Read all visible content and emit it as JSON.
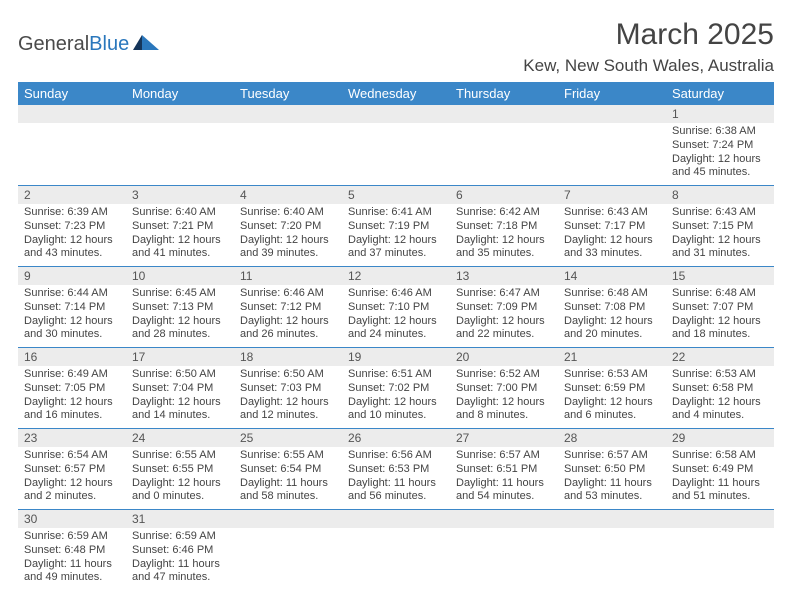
{
  "logo": {
    "general": "General",
    "blue": "Blue"
  },
  "title": "March 2025",
  "location": "Kew, New South Wales, Australia",
  "colors": {
    "header_bg": "#3b87c8",
    "header_text": "#ffffff",
    "grey_row": "#ececec",
    "border": "#3b87c8",
    "text": "#444444"
  },
  "day_names": [
    "Sunday",
    "Monday",
    "Tuesday",
    "Wednesday",
    "Thursday",
    "Friday",
    "Saturday"
  ],
  "weeks": [
    {
      "nums": [
        "",
        "",
        "",
        "",
        "",
        "",
        "1"
      ],
      "cells": [
        null,
        null,
        null,
        null,
        null,
        null,
        {
          "sunrise": "Sunrise: 6:38 AM",
          "sunset": "Sunset: 7:24 PM",
          "day1": "Daylight: 12 hours",
          "day2": "and 45 minutes."
        }
      ]
    },
    {
      "nums": [
        "2",
        "3",
        "4",
        "5",
        "6",
        "7",
        "8"
      ],
      "cells": [
        {
          "sunrise": "Sunrise: 6:39 AM",
          "sunset": "Sunset: 7:23 PM",
          "day1": "Daylight: 12 hours",
          "day2": "and 43 minutes."
        },
        {
          "sunrise": "Sunrise: 6:40 AM",
          "sunset": "Sunset: 7:21 PM",
          "day1": "Daylight: 12 hours",
          "day2": "and 41 minutes."
        },
        {
          "sunrise": "Sunrise: 6:40 AM",
          "sunset": "Sunset: 7:20 PM",
          "day1": "Daylight: 12 hours",
          "day2": "and 39 minutes."
        },
        {
          "sunrise": "Sunrise: 6:41 AM",
          "sunset": "Sunset: 7:19 PM",
          "day1": "Daylight: 12 hours",
          "day2": "and 37 minutes."
        },
        {
          "sunrise": "Sunrise: 6:42 AM",
          "sunset": "Sunset: 7:18 PM",
          "day1": "Daylight: 12 hours",
          "day2": "and 35 minutes."
        },
        {
          "sunrise": "Sunrise: 6:43 AM",
          "sunset": "Sunset: 7:17 PM",
          "day1": "Daylight: 12 hours",
          "day2": "and 33 minutes."
        },
        {
          "sunrise": "Sunrise: 6:43 AM",
          "sunset": "Sunset: 7:15 PM",
          "day1": "Daylight: 12 hours",
          "day2": "and 31 minutes."
        }
      ]
    },
    {
      "nums": [
        "9",
        "10",
        "11",
        "12",
        "13",
        "14",
        "15"
      ],
      "cells": [
        {
          "sunrise": "Sunrise: 6:44 AM",
          "sunset": "Sunset: 7:14 PM",
          "day1": "Daylight: 12 hours",
          "day2": "and 30 minutes."
        },
        {
          "sunrise": "Sunrise: 6:45 AM",
          "sunset": "Sunset: 7:13 PM",
          "day1": "Daylight: 12 hours",
          "day2": "and 28 minutes."
        },
        {
          "sunrise": "Sunrise: 6:46 AM",
          "sunset": "Sunset: 7:12 PM",
          "day1": "Daylight: 12 hours",
          "day2": "and 26 minutes."
        },
        {
          "sunrise": "Sunrise: 6:46 AM",
          "sunset": "Sunset: 7:10 PM",
          "day1": "Daylight: 12 hours",
          "day2": "and 24 minutes."
        },
        {
          "sunrise": "Sunrise: 6:47 AM",
          "sunset": "Sunset: 7:09 PM",
          "day1": "Daylight: 12 hours",
          "day2": "and 22 minutes."
        },
        {
          "sunrise": "Sunrise: 6:48 AM",
          "sunset": "Sunset: 7:08 PM",
          "day1": "Daylight: 12 hours",
          "day2": "and 20 minutes."
        },
        {
          "sunrise": "Sunrise: 6:48 AM",
          "sunset": "Sunset: 7:07 PM",
          "day1": "Daylight: 12 hours",
          "day2": "and 18 minutes."
        }
      ]
    },
    {
      "nums": [
        "16",
        "17",
        "18",
        "19",
        "20",
        "21",
        "22"
      ],
      "cells": [
        {
          "sunrise": "Sunrise: 6:49 AM",
          "sunset": "Sunset: 7:05 PM",
          "day1": "Daylight: 12 hours",
          "day2": "and 16 minutes."
        },
        {
          "sunrise": "Sunrise: 6:50 AM",
          "sunset": "Sunset: 7:04 PM",
          "day1": "Daylight: 12 hours",
          "day2": "and 14 minutes."
        },
        {
          "sunrise": "Sunrise: 6:50 AM",
          "sunset": "Sunset: 7:03 PM",
          "day1": "Daylight: 12 hours",
          "day2": "and 12 minutes."
        },
        {
          "sunrise": "Sunrise: 6:51 AM",
          "sunset": "Sunset: 7:02 PM",
          "day1": "Daylight: 12 hours",
          "day2": "and 10 minutes."
        },
        {
          "sunrise": "Sunrise: 6:52 AM",
          "sunset": "Sunset: 7:00 PM",
          "day1": "Daylight: 12 hours",
          "day2": "and 8 minutes."
        },
        {
          "sunrise": "Sunrise: 6:53 AM",
          "sunset": "Sunset: 6:59 PM",
          "day1": "Daylight: 12 hours",
          "day2": "and 6 minutes."
        },
        {
          "sunrise": "Sunrise: 6:53 AM",
          "sunset": "Sunset: 6:58 PM",
          "day1": "Daylight: 12 hours",
          "day2": "and 4 minutes."
        }
      ]
    },
    {
      "nums": [
        "23",
        "24",
        "25",
        "26",
        "27",
        "28",
        "29"
      ],
      "cells": [
        {
          "sunrise": "Sunrise: 6:54 AM",
          "sunset": "Sunset: 6:57 PM",
          "day1": "Daylight: 12 hours",
          "day2": "and 2 minutes."
        },
        {
          "sunrise": "Sunrise: 6:55 AM",
          "sunset": "Sunset: 6:55 PM",
          "day1": "Daylight: 12 hours",
          "day2": "and 0 minutes."
        },
        {
          "sunrise": "Sunrise: 6:55 AM",
          "sunset": "Sunset: 6:54 PM",
          "day1": "Daylight: 11 hours",
          "day2": "and 58 minutes."
        },
        {
          "sunrise": "Sunrise: 6:56 AM",
          "sunset": "Sunset: 6:53 PM",
          "day1": "Daylight: 11 hours",
          "day2": "and 56 minutes."
        },
        {
          "sunrise": "Sunrise: 6:57 AM",
          "sunset": "Sunset: 6:51 PM",
          "day1": "Daylight: 11 hours",
          "day2": "and 54 minutes."
        },
        {
          "sunrise": "Sunrise: 6:57 AM",
          "sunset": "Sunset: 6:50 PM",
          "day1": "Daylight: 11 hours",
          "day2": "and 53 minutes."
        },
        {
          "sunrise": "Sunrise: 6:58 AM",
          "sunset": "Sunset: 6:49 PM",
          "day1": "Daylight: 11 hours",
          "day2": "and 51 minutes."
        }
      ]
    },
    {
      "nums": [
        "30",
        "31",
        "",
        "",
        "",
        "",
        ""
      ],
      "cells": [
        {
          "sunrise": "Sunrise: 6:59 AM",
          "sunset": "Sunset: 6:48 PM",
          "day1": "Daylight: 11 hours",
          "day2": "and 49 minutes."
        },
        {
          "sunrise": "Sunrise: 6:59 AM",
          "sunset": "Sunset: 6:46 PM",
          "day1": "Daylight: 11 hours",
          "day2": "and 47 minutes."
        },
        null,
        null,
        null,
        null,
        null
      ]
    }
  ]
}
